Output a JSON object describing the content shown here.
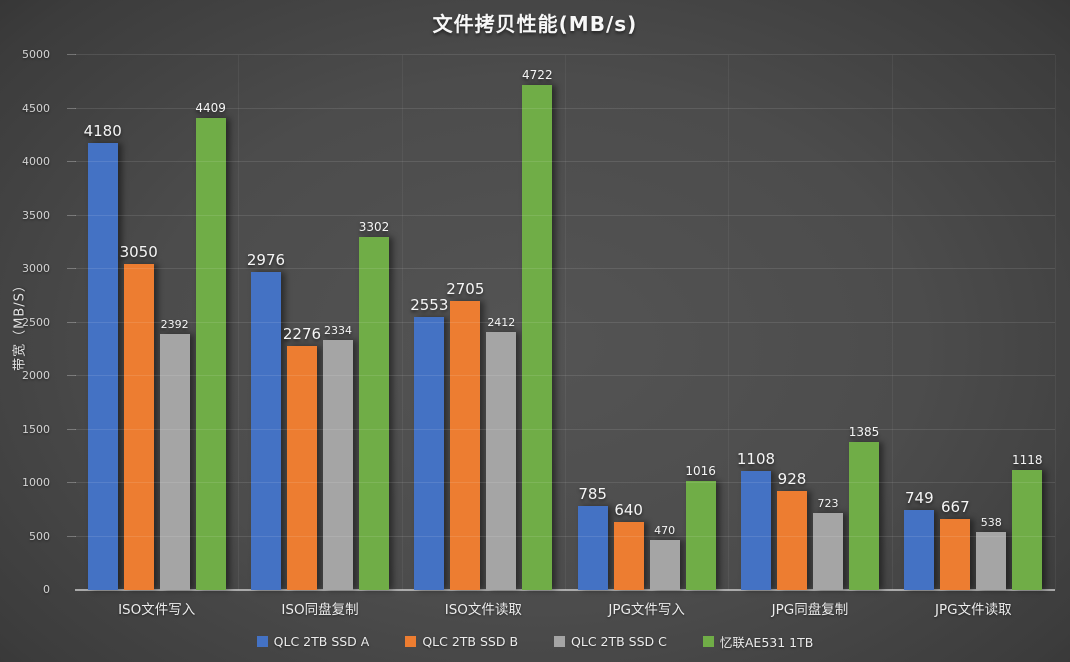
{
  "chart_data": {
    "type": "bar",
    "title": "文件拷贝性能(MB/s)",
    "ylabel": "带宽（MB/S）",
    "xlabel": "",
    "ylim": [
      0,
      5000
    ],
    "ytick_step": 500,
    "grid": true,
    "legend_position": "bottom",
    "background": "dark-radial-gradient",
    "categories": [
      "ISO文件写入",
      "ISO同盘复制",
      "ISO文件读取",
      "JPG文件写入",
      "JPG同盘复制",
      "JPG文件读取"
    ],
    "series": [
      {
        "name": "QLC 2TB SSD A",
        "color": "#4472C4",
        "values": [
          4180,
          2976,
          2553,
          785,
          1108,
          749
        ]
      },
      {
        "name": "QLC 2TB SSD B",
        "color": "#ED7D31",
        "values": [
          3050,
          2276,
          2705,
          640,
          928,
          667
        ]
      },
      {
        "name": "QLC 2TB SSD C",
        "color": "#A5A5A5",
        "values": [
          2392,
          2334,
          2412,
          470,
          723,
          538
        ]
      },
      {
        "name": "忆联AE531 1TB",
        "color": "#70AD47",
        "values": [
          4409,
          3302,
          4722,
          1016,
          1385,
          1118
        ]
      }
    ]
  },
  "colors": {
    "title_text": "#F7F7F7",
    "tick_text": "#D4D4D4",
    "gridline": "rgba(255,255,255,0.10)",
    "axis_line": "rgba(195,195,195,0.8)"
  }
}
